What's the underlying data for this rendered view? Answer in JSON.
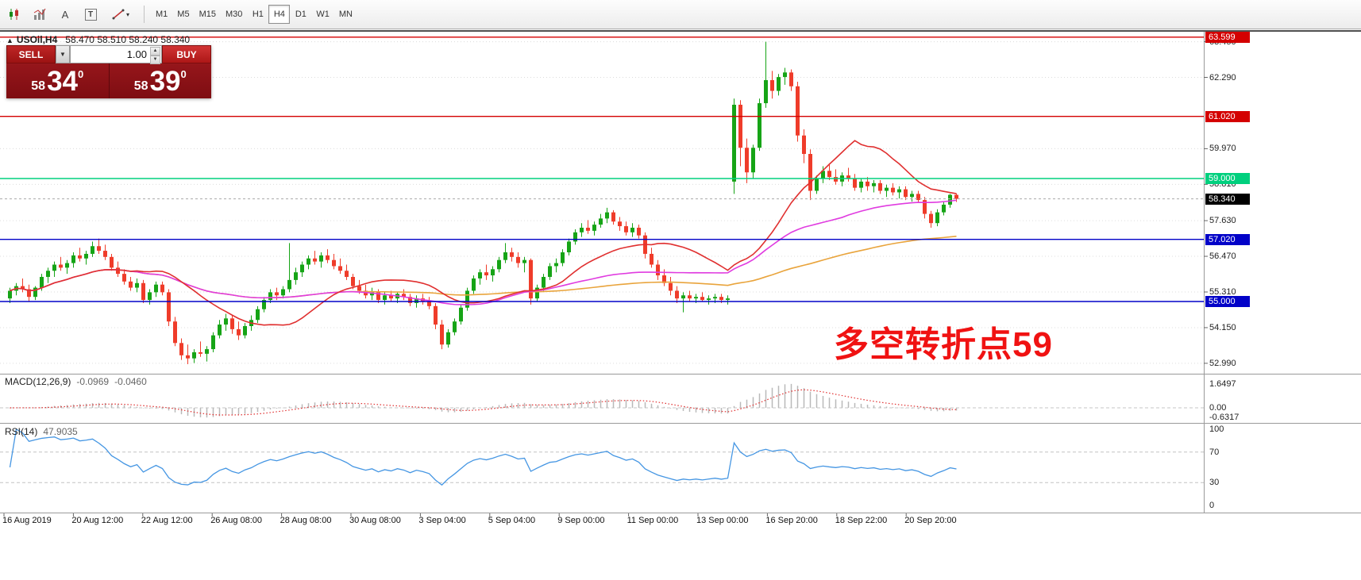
{
  "toolbar": {
    "icons": [
      {
        "name": "charts-icon"
      },
      {
        "name": "indicators-icon"
      },
      {
        "name": "cursor-tool-icon",
        "glyph": "A"
      },
      {
        "name": "text-tool-icon",
        "glyph": "T"
      },
      {
        "name": "draw-tools-icon"
      }
    ],
    "timeframes": [
      "M1",
      "M5",
      "M15",
      "M30",
      "H1",
      "H4",
      "D1",
      "W1",
      "MN"
    ],
    "active_timeframe": "H4"
  },
  "trade_panel": {
    "sell_label": "SELL",
    "buy_label": "BUY",
    "volume": "1.00",
    "sell_price_small": "58",
    "sell_price_big": "34",
    "sell_price_sup": "0",
    "buy_price_small": "58",
    "buy_price_big": "39",
    "buy_price_sup": "0"
  },
  "chart": {
    "marker": "▲",
    "symbol_title": "USOil,H4",
    "ohlc_text": "58.470 58.510 58.240 58.340",
    "annotation": "多空转折点59"
  },
  "macd_panel": {
    "title": "MACD(12,26,9)",
    "value_main": "-0.0969",
    "value_signal": "-0.0460",
    "axis": [
      "1.6497",
      "0.00",
      "-0.6317"
    ]
  },
  "rsi_panel": {
    "title": "RSI(14)",
    "value": "47.9035",
    "axis": [
      "100",
      "70",
      "30",
      "0"
    ],
    "levels": [
      70,
      30
    ]
  },
  "colors": {
    "bull": "#16a416",
    "bear": "#ef3c2a",
    "ma_fast": "#e03030",
    "ma_mid": "#e03ce0",
    "ma_slow": "#e9a43c",
    "macd_hist": "#b9b9b9",
    "macd_signal": "#e03030",
    "rsi": "#4596e3",
    "grid": "#dcdcdc",
    "level_red": "#d40000",
    "level_green": "#00d07e",
    "level_blue": "#0202c8",
    "bid_black": "#000000"
  },
  "chart_data": {
    "type": "candlestick",
    "title": "USOil,H4",
    "price_ticks": [
      63.45,
      62.29,
      59.97,
      58.81,
      57.63,
      56.47,
      55.31,
      54.15,
      52.99
    ],
    "price_badges": [
      {
        "label": "63.599",
        "price": 63.599,
        "color": "#d40000"
      },
      {
        "label": "61.020",
        "price": 61.02,
        "color": "#d40000"
      },
      {
        "label": "59.000",
        "price": 59.0,
        "color": "#00d07e"
      },
      {
        "label": "58.340",
        "price": 58.34,
        "color": "#000000"
      },
      {
        "label": "57.020",
        "price": 57.02,
        "color": "#0202c8"
      },
      {
        "label": "55.000",
        "price": 55.0,
        "color": "#0202c8"
      }
    ],
    "h_lines": [
      {
        "price": 63.599,
        "color": "#d40000"
      },
      {
        "price": 61.02,
        "color": "#d40000"
      },
      {
        "price": 59.0,
        "color": "#00d07e"
      },
      {
        "price": 57.02,
        "color": "#0202c8"
      },
      {
        "price": 55.0,
        "color": "#0202c8"
      }
    ],
    "bid_line": {
      "price": 58.34
    },
    "time_labels": [
      "16 Aug 2019",
      "20 Aug 12:00",
      "22 Aug 12:00",
      "26 Aug 08:00",
      "28 Aug 08:00",
      "30 Aug 08:00",
      "3 Sep 04:00",
      "5 Sep 04:00",
      "9 Sep 00:00",
      "11 Sep 00:00",
      "13 Sep 00:00",
      "16 Sep 20:00",
      "18 Sep 22:00",
      "20 Sep 20:00"
    ],
    "candles": [
      [
        55.1,
        55.45,
        54.95,
        55.35
      ],
      [
        55.35,
        55.6,
        55.2,
        55.5
      ],
      [
        55.5,
        55.75,
        55.3,
        55.4
      ],
      [
        55.4,
        55.55,
        55.0,
        55.15
      ],
      [
        55.15,
        55.5,
        55.05,
        55.45
      ],
      [
        55.45,
        55.9,
        55.35,
        55.8
      ],
      [
        55.8,
        56.1,
        55.6,
        56.0
      ],
      [
        56.0,
        56.3,
        55.8,
        56.2
      ],
      [
        56.2,
        56.45,
        56.0,
        56.1
      ],
      [
        56.1,
        56.35,
        55.9,
        56.25
      ],
      [
        56.25,
        56.6,
        56.1,
        56.5
      ],
      [
        56.5,
        56.75,
        56.3,
        56.4
      ],
      [
        56.4,
        56.65,
        56.2,
        56.55
      ],
      [
        56.55,
        56.95,
        56.45,
        56.8
      ],
      [
        56.8,
        57.05,
        56.55,
        56.65
      ],
      [
        56.65,
        56.85,
        56.35,
        56.45
      ],
      [
        56.45,
        56.55,
        56.0,
        56.1
      ],
      [
        56.1,
        56.3,
        55.8,
        55.9
      ],
      [
        55.9,
        56.05,
        55.55,
        55.65
      ],
      [
        55.65,
        55.8,
        55.35,
        55.45
      ],
      [
        55.45,
        55.75,
        55.3,
        55.6
      ],
      [
        55.6,
        55.7,
        54.95,
        55.05
      ],
      [
        55.05,
        55.4,
        54.9,
        55.3
      ],
      [
        55.3,
        55.65,
        55.15,
        55.55
      ],
      [
        55.55,
        55.65,
        55.2,
        55.3
      ],
      [
        55.3,
        55.4,
        54.2,
        54.35
      ],
      [
        54.35,
        54.5,
        53.55,
        53.65
      ],
      [
        53.65,
        53.8,
        53.1,
        53.25
      ],
      [
        53.25,
        53.6,
        52.96,
        53.15
      ],
      [
        53.15,
        53.45,
        53.0,
        53.35
      ],
      [
        53.35,
        53.7,
        53.2,
        53.3
      ],
      [
        53.3,
        53.55,
        53.05,
        53.45
      ],
      [
        53.45,
        54.0,
        53.35,
        53.9
      ],
      [
        53.9,
        54.4,
        53.8,
        54.25
      ],
      [
        54.25,
        54.6,
        54.05,
        54.45
      ],
      [
        54.45,
        54.55,
        53.95,
        54.1
      ],
      [
        54.1,
        54.35,
        53.75,
        53.9
      ],
      [
        53.9,
        54.3,
        53.8,
        54.2
      ],
      [
        54.2,
        54.55,
        54.05,
        54.4
      ],
      [
        54.4,
        54.85,
        54.3,
        54.75
      ],
      [
        54.75,
        55.15,
        54.65,
        55.05
      ],
      [
        55.05,
        55.4,
        54.95,
        55.3
      ],
      [
        55.3,
        55.45,
        55.05,
        55.2
      ],
      [
        55.2,
        55.5,
        55.1,
        55.4
      ],
      [
        55.4,
        56.9,
        55.3,
        55.7
      ],
      [
        55.7,
        56.1,
        55.55,
        55.95
      ],
      [
        55.95,
        56.3,
        55.8,
        56.2
      ],
      [
        56.2,
        56.5,
        56.05,
        56.4
      ],
      [
        56.4,
        56.65,
        56.2,
        56.3
      ],
      [
        56.3,
        56.6,
        56.1,
        56.5
      ],
      [
        56.5,
        56.7,
        56.25,
        56.35
      ],
      [
        56.35,
        56.55,
        56.05,
        56.15
      ],
      [
        56.15,
        56.4,
        55.9,
        56.0
      ],
      [
        56.0,
        56.2,
        55.7,
        55.8
      ],
      [
        55.8,
        55.9,
        55.4,
        55.5
      ],
      [
        55.5,
        55.7,
        55.25,
        55.35
      ],
      [
        55.35,
        55.55,
        55.1,
        55.2
      ],
      [
        55.2,
        55.45,
        55.05,
        55.3
      ],
      [
        55.3,
        55.4,
        54.95,
        55.05
      ],
      [
        55.05,
        55.3,
        54.9,
        55.2
      ],
      [
        55.2,
        55.35,
        55.0,
        55.1
      ],
      [
        55.1,
        55.3,
        54.95,
        55.25
      ],
      [
        55.25,
        55.4,
        55.05,
        55.15
      ],
      [
        55.15,
        55.25,
        54.85,
        54.95
      ],
      [
        54.95,
        55.2,
        54.8,
        55.1
      ],
      [
        55.1,
        55.25,
        54.9,
        55.0
      ],
      [
        55.0,
        55.15,
        54.75,
        54.85
      ],
      [
        54.85,
        54.95,
        54.1,
        54.25
      ],
      [
        54.25,
        54.4,
        53.45,
        53.6
      ],
      [
        53.6,
        54.1,
        53.5,
        54.0
      ],
      [
        54.0,
        54.45,
        53.9,
        54.35
      ],
      [
        54.35,
        54.9,
        54.25,
        54.8
      ],
      [
        54.8,
        55.45,
        54.7,
        55.35
      ],
      [
        55.35,
        55.85,
        55.25,
        55.75
      ],
      [
        55.75,
        56.05,
        55.55,
        55.95
      ],
      [
        55.95,
        56.2,
        55.7,
        55.85
      ],
      [
        55.85,
        56.15,
        55.65,
        56.05
      ],
      [
        56.05,
        56.45,
        55.95,
        56.35
      ],
      [
        56.35,
        56.9,
        56.25,
        56.6
      ],
      [
        56.6,
        56.75,
        56.3,
        56.45
      ],
      [
        56.45,
        56.6,
        56.1,
        56.25
      ],
      [
        56.25,
        56.45,
        55.95,
        56.35
      ],
      [
        56.35,
        56.4,
        54.9,
        55.1
      ],
      [
        55.1,
        55.55,
        55.0,
        55.45
      ],
      [
        55.45,
        55.9,
        55.35,
        55.8
      ],
      [
        55.8,
        56.25,
        55.7,
        56.15
      ],
      [
        56.15,
        56.4,
        55.95,
        56.25
      ],
      [
        56.25,
        56.7,
        56.15,
        56.6
      ],
      [
        56.6,
        57.05,
        56.5,
        56.95
      ],
      [
        56.95,
        57.35,
        56.85,
        57.25
      ],
      [
        57.25,
        57.55,
        57.1,
        57.4
      ],
      [
        57.4,
        57.65,
        57.2,
        57.3
      ],
      [
        57.3,
        57.6,
        57.15,
        57.5
      ],
      [
        57.5,
        57.85,
        57.4,
        57.7
      ],
      [
        57.7,
        58.05,
        57.55,
        57.9
      ],
      [
        57.9,
        57.97,
        57.5,
        57.6
      ],
      [
        57.6,
        57.75,
        57.3,
        57.45
      ],
      [
        57.45,
        57.6,
        57.15,
        57.25
      ],
      [
        57.25,
        57.55,
        57.1,
        57.4
      ],
      [
        57.4,
        57.5,
        57.05,
        57.15
      ],
      [
        57.15,
        57.25,
        56.4,
        56.55
      ],
      [
        56.55,
        56.75,
        56.1,
        56.2
      ],
      [
        56.2,
        56.35,
        55.7,
        55.85
      ],
      [
        55.85,
        56.05,
        55.5,
        55.6
      ],
      [
        55.6,
        55.8,
        55.2,
        55.35
      ],
      [
        55.35,
        55.5,
        54.95,
        55.1
      ],
      [
        55.1,
        55.3,
        54.65,
        55.2
      ],
      [
        55.2,
        55.35,
        55.0,
        55.1
      ],
      [
        55.1,
        55.25,
        54.95,
        55.15
      ],
      [
        55.15,
        55.3,
        55.0,
        55.05
      ],
      [
        55.05,
        55.2,
        54.9,
        55.1
      ],
      [
        55.1,
        55.25,
        54.95,
        55.15
      ],
      [
        55.15,
        55.25,
        54.95,
        55.05
      ],
      [
        55.05,
        55.2,
        54.9,
        55.1
      ],
      [
        58.9,
        61.6,
        58.5,
        61.4
      ],
      [
        61.4,
        61.55,
        59.4,
        60.0
      ],
      [
        60.0,
        60.3,
        58.85,
        59.2
      ],
      [
        59.2,
        60.1,
        59.0,
        60.0
      ],
      [
        60.0,
        61.6,
        59.9,
        61.45
      ],
      [
        61.45,
        63.45,
        61.3,
        62.2
      ],
      [
        62.2,
        62.5,
        61.6,
        61.85
      ],
      [
        61.85,
        62.4,
        61.7,
        62.3
      ],
      [
        62.3,
        62.6,
        62.05,
        62.45
      ],
      [
        62.45,
        62.55,
        61.85,
        62.0
      ],
      [
        62.0,
        62.15,
        60.2,
        60.4
      ],
      [
        60.4,
        60.6,
        59.5,
        59.8
      ],
      [
        59.8,
        59.95,
        58.3,
        58.6
      ],
      [
        58.6,
        59.1,
        58.5,
        59.0
      ],
      [
        59.0,
        59.4,
        58.85,
        59.25
      ],
      [
        59.25,
        59.45,
        58.95,
        59.05
      ],
      [
        59.05,
        59.3,
        58.8,
        58.9
      ],
      [
        58.9,
        59.2,
        58.75,
        59.1
      ],
      [
        59.1,
        59.35,
        58.9,
        59.0
      ],
      [
        59.0,
        59.15,
        58.6,
        58.7
      ],
      [
        58.7,
        59.0,
        58.55,
        58.9
      ],
      [
        58.9,
        59.05,
        58.6,
        58.75
      ],
      [
        58.75,
        58.95,
        58.55,
        58.85
      ],
      [
        58.85,
        58.95,
        58.5,
        58.6
      ],
      [
        58.6,
        58.8,
        58.4,
        58.7
      ],
      [
        58.7,
        58.85,
        58.45,
        58.55
      ],
      [
        58.55,
        58.75,
        58.35,
        58.65
      ],
      [
        58.65,
        58.75,
        58.3,
        58.4
      ],
      [
        58.4,
        58.6,
        58.25,
        58.5
      ],
      [
        58.5,
        58.6,
        58.2,
        58.3
      ],
      [
        58.3,
        58.4,
        57.7,
        57.85
      ],
      [
        57.85,
        57.95,
        57.4,
        57.55
      ],
      [
        57.55,
        58.0,
        57.45,
        57.9
      ],
      [
        57.9,
        58.25,
        57.8,
        58.15
      ],
      [
        58.15,
        58.5,
        58.05,
        58.47
      ],
      [
        58.47,
        58.51,
        58.24,
        58.34
      ]
    ]
  }
}
